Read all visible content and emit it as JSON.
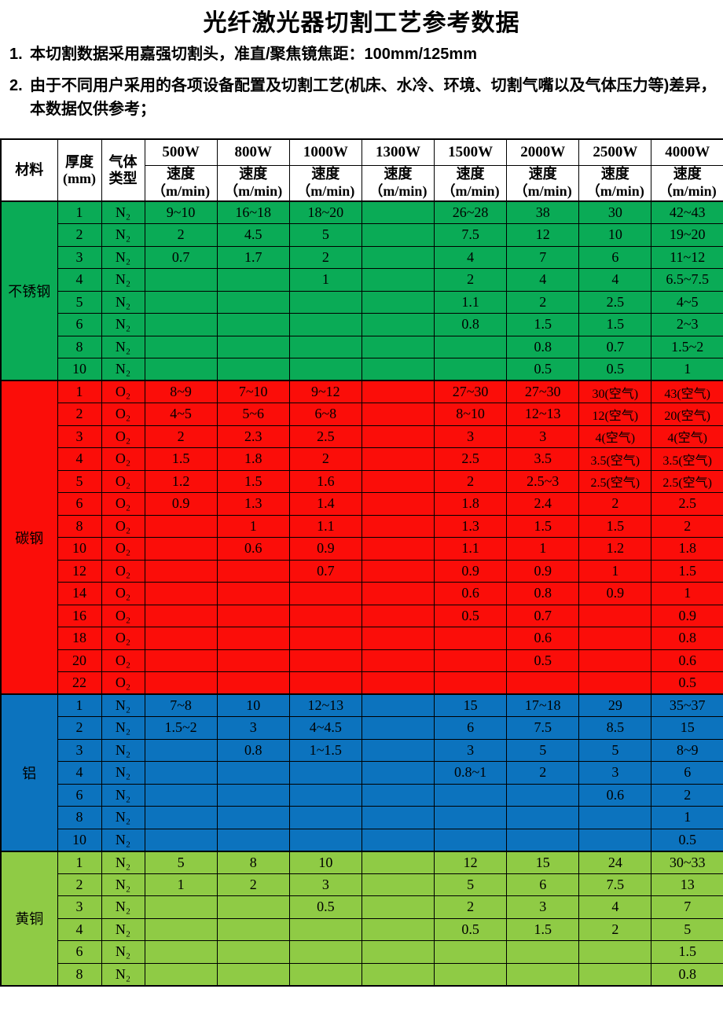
{
  "title": "光纤激光器切割工艺参考数据",
  "notes": [
    {
      "num": "1.",
      "text": "本切割数据采用嘉强切割头，准直/聚焦镜焦距：100mm/125mm"
    },
    {
      "num": "2.",
      "text": "由于不同用户采用的各项设备配置及切割工艺(机床、水冷、环境、切割气嘴以及气体压力等)差异，本数据仅供参考；"
    }
  ],
  "table": {
    "headers": {
      "material": "材料",
      "thickness_l1": "厚度",
      "thickness_l2": "(mm)",
      "gas_l1": "气体",
      "gas_l2": "类型",
      "speed_label": "速度",
      "speed_unit": "（m/min)"
    },
    "powers": [
      "500W",
      "800W",
      "1000W",
      "1300W",
      "1500W",
      "2000W",
      "2500W",
      "4000W"
    ],
    "sections": [
      {
        "material": "不锈钢",
        "color": "#0aab56",
        "rows": [
          {
            "t": "1",
            "gas": "N₂",
            "v": [
              "9~10",
              "16~18",
              "18~20",
              "",
              "26~28",
              "38",
              "30",
              "42~43"
            ]
          },
          {
            "t": "2",
            "gas": "N₂",
            "v": [
              "2",
              "4.5",
              "5",
              "",
              "7.5",
              "12",
              "10",
              "19~20"
            ]
          },
          {
            "t": "3",
            "gas": "N₂",
            "v": [
              "0.7",
              "1.7",
              "2",
              "",
              "4",
              "7",
              "6",
              "11~12"
            ]
          },
          {
            "t": "4",
            "gas": "N₂",
            "v": [
              "",
              "",
              "1",
              "",
              "2",
              "4",
              "4",
              "6.5~7.5"
            ]
          },
          {
            "t": "5",
            "gas": "N₂",
            "v": [
              "",
              "",
              "",
              "",
              "1.1",
              "2",
              "2.5",
              "4~5"
            ]
          },
          {
            "t": "6",
            "gas": "N₂",
            "v": [
              "",
              "",
              "",
              "",
              "0.8",
              "1.5",
              "1.5",
              "2~3"
            ]
          },
          {
            "t": "8",
            "gas": "N₂",
            "v": [
              "",
              "",
              "",
              "",
              "",
              "0.8",
              "0.7",
              "1.5~2"
            ]
          },
          {
            "t": "10",
            "gas": "N₂",
            "v": [
              "",
              "",
              "",
              "",
              "",
              "0.5",
              "0.5",
              "1"
            ]
          }
        ]
      },
      {
        "material": "碳钢",
        "color": "#fb0d09",
        "rows": [
          {
            "t": "1",
            "gas": "O₂",
            "v": [
              "8~9",
              "7~10",
              "9~12",
              "",
              "27~30",
              "27~30",
              "30(空气)",
              "43(空气)"
            ]
          },
          {
            "t": "2",
            "gas": "O₂",
            "v": [
              "4~5",
              "5~6",
              "6~8",
              "",
              "8~10",
              "12~13",
              "12(空气)",
              "20(空气)"
            ]
          },
          {
            "t": "3",
            "gas": "O₂",
            "v": [
              "2",
              "2.3",
              "2.5",
              "",
              "3",
              "3",
              "4(空气)",
              "4(空气)"
            ]
          },
          {
            "t": "4",
            "gas": "O₂",
            "v": [
              "1.5",
              "1.8",
              "2",
              "",
              "2.5",
              "3.5",
              "3.5(空气)",
              "3.5(空气)"
            ]
          },
          {
            "t": "5",
            "gas": "O₂",
            "v": [
              "1.2",
              "1.5",
              "1.6",
              "",
              "2",
              "2.5~3",
              "2.5(空气)",
              "2.5(空气)"
            ]
          },
          {
            "t": "6",
            "gas": "O₂",
            "v": [
              "0.9",
              "1.3",
              "1.4",
              "",
              "1.8",
              "2.4",
              "2",
              "2.5"
            ]
          },
          {
            "t": "8",
            "gas": "O₂",
            "v": [
              "",
              "1",
              "1.1",
              "",
              "1.3",
              "1.5",
              "1.5",
              "2"
            ]
          },
          {
            "t": "10",
            "gas": "O₂",
            "v": [
              "",
              "0.6",
              "0.9",
              "",
              "1.1",
              "1",
              "1.2",
              "1.8"
            ]
          },
          {
            "t": "12",
            "gas": "O₂",
            "v": [
              "",
              "",
              "0.7",
              "",
              "0.9",
              "0.9",
              "1",
              "1.5"
            ]
          },
          {
            "t": "14",
            "gas": "O₂",
            "v": [
              "",
              "",
              "",
              "",
              "0.6",
              "0.8",
              "0.9",
              "1"
            ]
          },
          {
            "t": "16",
            "gas": "O₂",
            "v": [
              "",
              "",
              "",
              "",
              "0.5",
              "0.7",
              "",
              "0.9"
            ]
          },
          {
            "t": "18",
            "gas": "O₂",
            "v": [
              "",
              "",
              "",
              "",
              "",
              "0.6",
              "",
              "0.8"
            ]
          },
          {
            "t": "20",
            "gas": "O₂",
            "v": [
              "",
              "",
              "",
              "",
              "",
              "0.5",
              "",
              "0.6"
            ]
          },
          {
            "t": "22",
            "gas": "O₂",
            "v": [
              "",
              "",
              "",
              "",
              "",
              "",
              "",
              "0.5"
            ]
          }
        ]
      },
      {
        "material": "铝",
        "color": "#0c73be",
        "rows": [
          {
            "t": "1",
            "gas": "N₂",
            "v": [
              "7~8",
              "10",
              "12~13",
              "",
              "15",
              "17~18",
              "29",
              "35~37"
            ]
          },
          {
            "t": "2",
            "gas": "N₂",
            "v": [
              "1.5~2",
              "3",
              "4~4.5",
              "",
              "6",
              "7.5",
              "8.5",
              "15"
            ]
          },
          {
            "t": "3",
            "gas": "N₂",
            "v": [
              "",
              "0.8",
              "1~1.5",
              "",
              "3",
              "5",
              "5",
              "8~9"
            ]
          },
          {
            "t": "4",
            "gas": "N₂",
            "v": [
              "",
              "",
              "",
              "",
              "0.8~1",
              "2",
              "3",
              "6"
            ]
          },
          {
            "t": "6",
            "gas": "N₂",
            "v": [
              "",
              "",
              "",
              "",
              "",
              "",
              "0.6",
              "2"
            ]
          },
          {
            "t": "8",
            "gas": "N₂",
            "v": [
              "",
              "",
              "",
              "",
              "",
              "",
              "",
              "1"
            ]
          },
          {
            "t": "10",
            "gas": "N₂",
            "v": [
              "",
              "",
              "",
              "",
              "",
              "",
              "",
              "0.5"
            ]
          }
        ]
      },
      {
        "material": "黄铜",
        "color": "#8fcb45",
        "rows": [
          {
            "t": "1",
            "gas": "N₂",
            "v": [
              "5",
              "8",
              "10",
              "",
              "12",
              "15",
              "24",
              "30~33"
            ]
          },
          {
            "t": "2",
            "gas": "N₂",
            "v": [
              "1",
              "2",
              "3",
              "",
              "5",
              "6",
              "7.5",
              "13"
            ]
          },
          {
            "t": "3",
            "gas": "N₂",
            "v": [
              "",
              "",
              "0.5",
              "",
              "2",
              "3",
              "4",
              "7"
            ]
          },
          {
            "t": "4",
            "gas": "N₂",
            "v": [
              "",
              "",
              "",
              "",
              "0.5",
              "1.5",
              "2",
              "5"
            ]
          },
          {
            "t": "6",
            "gas": "N₂",
            "v": [
              "",
              "",
              "",
              "",
              "",
              "",
              "",
              "1.5"
            ]
          },
          {
            "t": "8",
            "gas": "N₂",
            "v": [
              "",
              "",
              "",
              "",
              "",
              "",
              "",
              "0.8"
            ]
          }
        ]
      }
    ]
  }
}
